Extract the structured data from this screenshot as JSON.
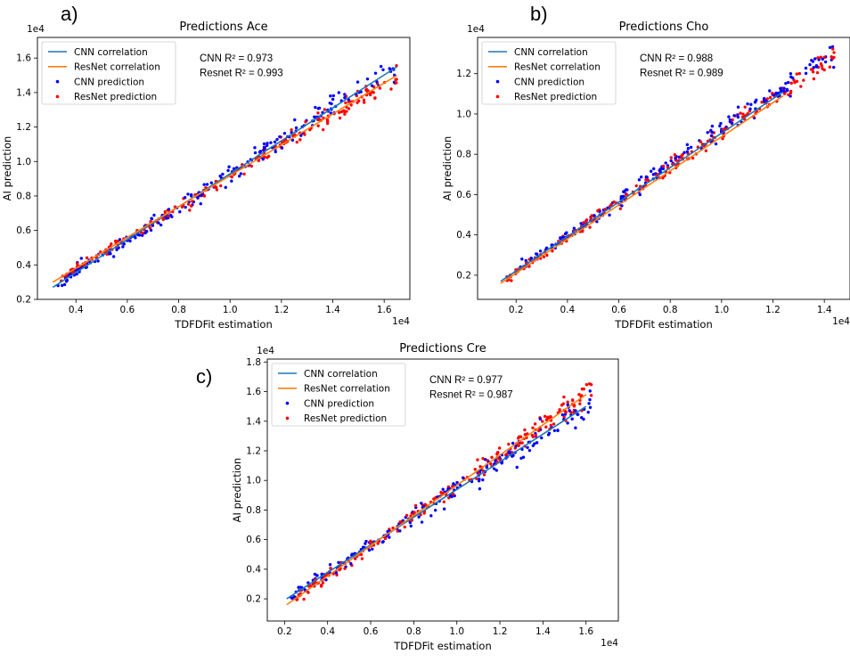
{
  "colors": {
    "cnn_line": "#1f77b4",
    "resnet_line": "#ff7f0e",
    "cnn_points": "#0000ff",
    "resnet_points": "#ff0000"
  },
  "chart_data": [
    {
      "type": "scatter",
      "panel_label": "a)",
      "title": "Predictions Ace",
      "xlabel": "TDFDFit estimation",
      "ylabel": "AI prediction",
      "x_multiplier_label": "1e4",
      "y_multiplier_label": "1e4",
      "xlim": [
        0.25,
        1.7
      ],
      "ylim": [
        0.2,
        1.72
      ],
      "xticks": [
        0.4,
        0.6,
        0.8,
        1.0,
        1.2,
        1.4,
        1.6
      ],
      "xtick_labels": [
        "0.4",
        "0.6",
        "0.8",
        "1.0",
        "1.2",
        "1.4",
        "1.6"
      ],
      "yticks": [
        0.2,
        0.4,
        0.6,
        0.8,
        1.0,
        1.2,
        1.4,
        1.6
      ],
      "ytick_labels": [
        "0.2",
        "0.4",
        "0.6",
        "0.8",
        "1.0",
        "1.2",
        "1.4",
        "1.6"
      ],
      "annotation": [
        "CNN R² = 0.973",
        "Resnet R² = 0.993"
      ],
      "legend_position": "upper-left",
      "legend": [
        "CNN correlation",
        "ResNet correlation",
        "CNN prediction",
        "ResNet prediction"
      ],
      "cnn_correlation": {
        "x": [
          0.31,
          1.65
        ],
        "y": [
          0.27,
          1.55
        ]
      },
      "resnet_correlation": {
        "x": [
          0.31,
          1.65
        ],
        "y": [
          0.3,
          1.5
        ]
      },
      "cnn_points": {
        "x_range": [
          0.33,
          1.65
        ],
        "count": 210,
        "slope": 0.955,
        "intercept": -0.025,
        "noise": 0.028,
        "seed": 11
      },
      "resnet_points": {
        "x_range": [
          0.33,
          1.65
        ],
        "count": 220,
        "slope": 0.895,
        "intercept": 0.022,
        "noise": 0.018,
        "seed": 23
      }
    },
    {
      "type": "scatter",
      "panel_label": "b)",
      "title": "Predictions Cho",
      "xlabel": "TDFDFit estimation",
      "ylabel": "AI prediction",
      "x_multiplier_label": "1e4",
      "y_multiplier_label": "1e4",
      "xlim": [
        0.05,
        1.5
      ],
      "ylim": [
        0.08,
        1.38
      ],
      "xticks": [
        0.2,
        0.4,
        0.6,
        0.8,
        1.0,
        1.2,
        1.4
      ],
      "xtick_labels": [
        "0.2",
        "0.4",
        "0.6",
        "0.8",
        "1.0",
        "1.2",
        "1.4"
      ],
      "yticks": [
        0.2,
        0.4,
        0.6,
        0.8,
        1.0,
        1.2
      ],
      "ytick_labels": [
        "0.2",
        "0.4",
        "0.6",
        "0.8",
        "1.0",
        "1.2"
      ],
      "annotation": [
        "CNN R² = 0.988",
        "Resnet R² = 0.989"
      ],
      "legend_position": "upper-left",
      "legend": [
        "CNN correlation",
        "ResNet correlation",
        "CNN prediction",
        "ResNet prediction"
      ],
      "cnn_correlation": {
        "x": [
          0.14,
          1.24
        ],
        "y": [
          0.17,
          1.11
        ]
      },
      "resnet_correlation": {
        "x": [
          0.14,
          1.24
        ],
        "y": [
          0.16,
          1.09
        ]
      },
      "cnn_points": {
        "x_range": [
          0.15,
          1.44
        ],
        "count": 200,
        "slope": 0.87,
        "intercept": 0.05,
        "noise": 0.02,
        "seed": 37
      },
      "resnet_points": {
        "x_range": [
          0.15,
          1.44
        ],
        "count": 210,
        "slope": 0.865,
        "intercept": 0.042,
        "noise": 0.018,
        "seed": 41
      }
    },
    {
      "type": "scatter",
      "panel_label": "c)",
      "title": "Predictions Cre",
      "xlabel": "TDFDFit estimation",
      "ylabel": "AI prediction",
      "x_multiplier_label": "1e4",
      "y_multiplier_label": "1e4",
      "xlim": [
        0.12,
        1.75
      ],
      "ylim": [
        0.05,
        1.82
      ],
      "xticks": [
        0.2,
        0.4,
        0.6,
        0.8,
        1.0,
        1.2,
        1.4,
        1.6
      ],
      "xtick_labels": [
        "0.2",
        "0.4",
        "0.6",
        "0.8",
        "1.0",
        "1.2",
        "1.4",
        "1.6"
      ],
      "yticks": [
        0.2,
        0.4,
        0.6,
        0.8,
        1.0,
        1.2,
        1.4,
        1.6,
        1.8
      ],
      "ytick_labels": [
        "0.2",
        "0.4",
        "0.6",
        "0.8",
        "1.0",
        "1.2",
        "1.4",
        "1.6",
        "1.8"
      ],
      "annotation": [
        "CNN R² = 0.977",
        "Resnet R² = 0.987"
      ],
      "legend_position": "upper-left",
      "legend": [
        "CNN correlation",
        "ResNet correlation",
        "CNN prediction",
        "ResNet prediction"
      ],
      "cnn_correlation": {
        "x": [
          0.21,
          1.6
        ],
        "y": [
          0.2,
          1.5
        ]
      },
      "resnet_correlation": {
        "x": [
          0.21,
          1.6
        ],
        "y": [
          0.16,
          1.58
        ]
      },
      "cnn_points": {
        "x_range": [
          0.22,
          1.62
        ],
        "count": 200,
        "slope": 0.935,
        "intercept": 0.004,
        "noise": 0.032,
        "seed": 53
      },
      "resnet_points": {
        "x_range": [
          0.25,
          1.64
        ],
        "count": 210,
        "slope": 1.02,
        "intercept": -0.055,
        "noise": 0.026,
        "seed": 67
      }
    }
  ]
}
